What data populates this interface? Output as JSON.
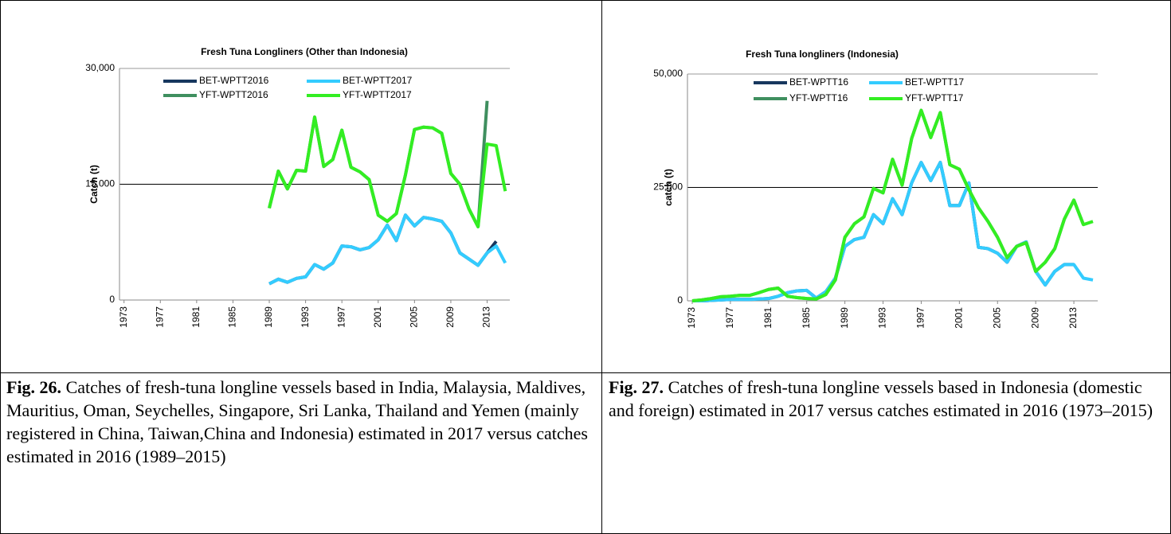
{
  "chart_data": [
    {
      "type": "line",
      "title": "Fresh Tuna Longliners (Other than Indonesia)",
      "y_label": "Catch (t)",
      "x": [
        1989,
        1990,
        1991,
        1992,
        1993,
        1994,
        1995,
        1996,
        1997,
        1998,
        1999,
        2000,
        2001,
        2002,
        2003,
        2004,
        2005,
        2006,
        2007,
        2008,
        2009,
        2010,
        2011,
        2012,
        2013,
        2014,
        2015
      ],
      "xlim": [
        1972.5,
        2015.5
      ],
      "xticks": [
        1973,
        1977,
        1981,
        1985,
        1989,
        1993,
        1997,
        2001,
        2005,
        2009,
        2013
      ],
      "ylim": [
        0,
        30000
      ],
      "yticks": [
        0,
        {
          "value": 15000,
          "label": "15,000"
        },
        {
          "value": 30000,
          "label": "30,000"
        }
      ],
      "grid": true,
      "series": [
        {
          "name": "BET-WPTT2016",
          "color": "#17375e",
          "values": [
            2100,
            2700,
            2300,
            2800,
            3000,
            4600,
            4000,
            4800,
            7000,
            6900,
            6500,
            6800,
            7800,
            9700,
            7700,
            11000,
            9600,
            10700,
            10500,
            10200,
            8700,
            6100,
            5300,
            4500,
            6100,
            7600,
            null
          ]
        },
        {
          "name": "BET-WPTT2017",
          "color": "#33ccff",
          "values": [
            2100,
            2700,
            2300,
            2800,
            3000,
            4600,
            4000,
            4800,
            7000,
            6900,
            6500,
            6800,
            7800,
            9700,
            7700,
            11000,
            9600,
            10700,
            10500,
            10200,
            8700,
            6100,
            5300,
            4500,
            6100,
            7000,
            4800
          ]
        },
        {
          "name": "YFT-WPTT2016",
          "color": "#3f8f5f",
          "values": [
            11900,
            16700,
            14400,
            16800,
            16700,
            23700,
            17300,
            18200,
            22000,
            17200,
            16600,
            15600,
            11000,
            10200,
            11200,
            16200,
            22100,
            22400,
            22300,
            21600,
            16400,
            15000,
            11800,
            9500,
            25800,
            null,
            null
          ]
        },
        {
          "name": "YFT-WPTT2017",
          "color": "#33ee22",
          "values": [
            11900,
            16700,
            14400,
            16800,
            16700,
            23700,
            17300,
            18200,
            22000,
            17200,
            16600,
            15600,
            11000,
            10200,
            11200,
            16200,
            22100,
            22400,
            22300,
            21600,
            16400,
            15000,
            11800,
            9500,
            20200,
            20000,
            14100
          ]
        }
      ]
    },
    {
      "type": "line",
      "title": "Fresh Tuna longliners (Indonesia)",
      "y_label": "catch (t)",
      "x": [
        1973,
        1974,
        1975,
        1976,
        1977,
        1978,
        1979,
        1980,
        1981,
        1982,
        1983,
        1984,
        1985,
        1986,
        1987,
        1988,
        1989,
        1990,
        1991,
        1992,
        1993,
        1994,
        1995,
        1996,
        1997,
        1998,
        1999,
        2000,
        2001,
        2002,
        2003,
        2004,
        2005,
        2006,
        2007,
        2008,
        2009,
        2010,
        2011,
        2012,
        2013,
        2014,
        2015
      ],
      "xlim": [
        1972.5,
        2015.5
      ],
      "xticks": [
        1973,
        1977,
        1981,
        1985,
        1989,
        1993,
        1997,
        2001,
        2005,
        2009,
        2013
      ],
      "ylim": [
        0,
        50000
      ],
      "yticks": [
        0,
        {
          "value": 25000,
          "label": "25,000"
        },
        {
          "value": 50000,
          "label": "50,000"
        }
      ],
      "grid": true,
      "series": [
        {
          "name": "BET-WPTT16",
          "color": "#17375e",
          "values": [
            0,
            0,
            100,
            200,
            300,
            300,
            300,
            400,
            500,
            1000,
            1800,
            2200,
            2300,
            600,
            2000,
            5000,
            12000,
            13500,
            14000,
            19000,
            17000,
            22500,
            19000,
            26000,
            30500,
            26500,
            30500,
            21000,
            21000,
            26000,
            11800,
            11500,
            10500,
            8500,
            12000,
            13000,
            6500,
            3500,
            6500,
            8000,
            8000,
            null,
            null
          ]
        },
        {
          "name": "BET-WPTT17",
          "color": "#33ccff",
          "values": [
            0,
            0,
            100,
            200,
            300,
            300,
            300,
            400,
            500,
            1000,
            1800,
            2200,
            2300,
            600,
            2000,
            5000,
            12000,
            13500,
            14000,
            19000,
            17000,
            22500,
            19000,
            26000,
            30500,
            26500,
            30500,
            21000,
            21000,
            26000,
            11800,
            11500,
            10500,
            8500,
            12000,
            13000,
            6500,
            3500,
            6500,
            8000,
            8000,
            5000,
            4600
          ]
        },
        {
          "name": "YFT-WPTT16",
          "color": "#3f8f5f",
          "values": [
            0,
            200,
            500,
            900,
            1000,
            1200,
            1200,
            1800,
            2500,
            2800,
            1000,
            700,
            500,
            400,
            1400,
            4600,
            14000,
            17000,
            18500,
            24800,
            23800,
            31200,
            25500,
            35800,
            42000,
            36000,
            41500,
            30000,
            29000,
            24500,
            20500,
            17500,
            14000,
            9500,
            12000,
            12800,
            6500,
            8500,
            11500,
            18000,
            22200,
            16800,
            null
          ]
        },
        {
          "name": "YFT-WPTT17",
          "color": "#33ee22",
          "values": [
            0,
            200,
            500,
            900,
            1000,
            1200,
            1200,
            1800,
            2500,
            2800,
            1000,
            700,
            500,
            400,
            1400,
            4600,
            14000,
            17000,
            18500,
            24800,
            23800,
            31200,
            25500,
            35800,
            42000,
            36000,
            41500,
            30000,
            29000,
            24500,
            20500,
            17500,
            14000,
            9500,
            12000,
            12800,
            6500,
            8500,
            11500,
            18000,
            22200,
            16800,
            17500
          ]
        }
      ]
    }
  ],
  "captions": [
    {
      "label": "Fig. 26.",
      "text": "Catches of fresh-tuna longline vessels based in India, Malaysia, Maldives, Mauritius, Oman, Seychelles, Singapore, Sri Lanka, Thailand and Yemen  (mainly registered in China, Taiwan,China and Indonesia) estimated in 2017 versus catches estimated in 2016 (1989–2015)"
    },
    {
      "label": "Fig. 27.",
      "text": "Catches of fresh-tuna longline vessels based in Indonesia (domestic and foreign) estimated in 2017 versus catches estimated in 2016 (1973–2015)"
    }
  ]
}
